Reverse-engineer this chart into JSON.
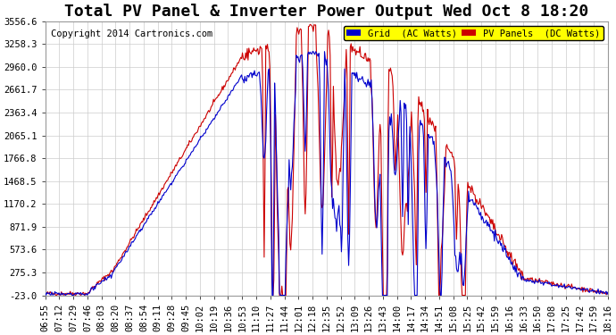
{
  "title": "Total PV Panel & Inverter Power Output Wed Oct 8 18:20",
  "copyright": "Copyright 2014 Cartronics.com",
  "legend_labels": [
    "Grid  (AC Watts)",
    "PV Panels  (DC Watts)"
  ],
  "legend_colors": [
    "#0000cc",
    "#cc0000"
  ],
  "legend_bg": "#ffff00",
  "ylim": [
    -23.0,
    3556.6
  ],
  "yticks": [
    -23.0,
    275.3,
    573.6,
    871.9,
    1170.2,
    1468.5,
    1766.8,
    2065.1,
    2363.4,
    2661.7,
    2960.0,
    3258.3,
    3556.6
  ],
  "xtick_labels": [
    "06:55",
    "07:12",
    "07:29",
    "07:46",
    "08:03",
    "08:20",
    "08:37",
    "08:54",
    "09:11",
    "09:28",
    "09:45",
    "10:02",
    "10:19",
    "10:36",
    "10:53",
    "11:10",
    "11:27",
    "11:44",
    "12:01",
    "12:18",
    "12:35",
    "12:52",
    "13:09",
    "13:26",
    "13:43",
    "14:00",
    "14:17",
    "14:34",
    "14:51",
    "15:08",
    "15:25",
    "15:42",
    "15:59",
    "16:16",
    "16:33",
    "16:50",
    "17:08",
    "17:25",
    "17:42",
    "17:59",
    "18:16"
  ],
  "bg_color": "#ffffff",
  "plot_bg": "#ffffff",
  "grid_color": "#cccccc",
  "line_blue": "#0000cc",
  "line_red": "#cc0000",
  "title_fontsize": 13,
  "tick_fontsize": 7.5,
  "copyright_fontsize": 7.5
}
